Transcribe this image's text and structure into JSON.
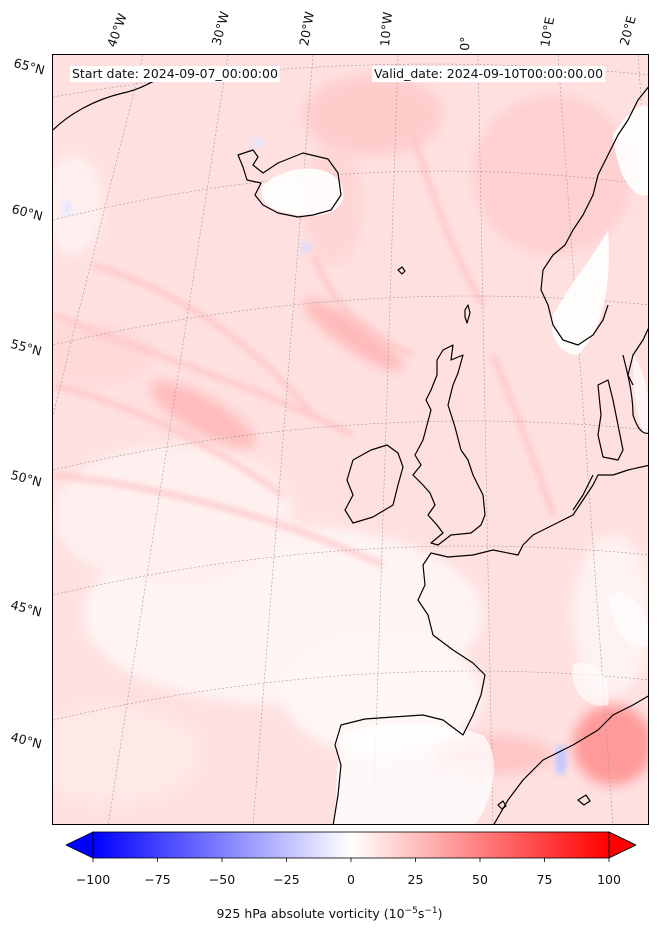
{
  "header": {
    "start_date": "Start date: 2024-09-07_00:00:00",
    "valid_date": "Valid_date: 2024-09-10T00:00:00.00"
  },
  "graticule": {
    "lon_labels": [
      "40°W",
      "30°W",
      "20°W",
      "10°W",
      "0°",
      "10°E",
      "20°E"
    ],
    "lat_labels": [
      "65°N",
      "60°N",
      "55°N",
      "50°N",
      "45°N",
      "40°N"
    ]
  },
  "colorbar": {
    "vmin": -100,
    "vmax": 100,
    "ticks": [
      "−100",
      "−75",
      "−50",
      "−25",
      "0",
      "25",
      "50",
      "75",
      "100"
    ],
    "title_main": "925 hPa absolute vorticity (10",
    "title_exp1": "−5",
    "title_mid": "s",
    "title_exp2": "−1",
    "title_end": ")",
    "low_color": "#0000ff",
    "mid_color": "#ffffff",
    "high_color": "#ff0000"
  },
  "colors": {
    "coastline": "#000000",
    "ocean_base": "#ffe4e4",
    "gridline": "#9a9a9a"
  }
}
